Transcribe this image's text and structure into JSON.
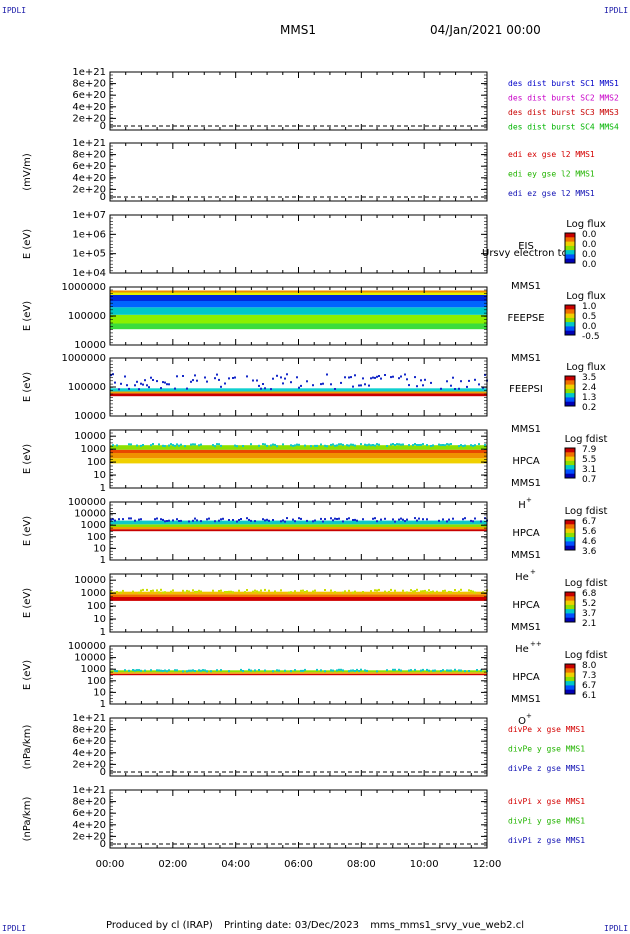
{
  "header": {
    "corner_label": "IPDLI",
    "spacecraft": "MMS1",
    "date_time": "04/Jan/2021 00:00"
  },
  "footer": {
    "produced_by": "Produced by cl (IRAP)",
    "printing_date": "Printing date: 03/Dec/2023",
    "file_name": "mms_mms1_srvy_vue_web2.cl"
  },
  "time_axis": {
    "ticks": [
      "00:00",
      "02:00",
      "04:00",
      "06:00",
      "08:00",
      "10:00",
      "12:00"
    ]
  },
  "colors": {
    "mms1": "#0000c8",
    "mms2": "#c800c8",
    "mms3": "#c80000",
    "mms4": "#00b400",
    "x": "#d40000",
    "y": "#22b400",
    "z": "#1010b4",
    "gse": "#009600"
  },
  "chart_data": [
    {
      "type": "line",
      "name": "des_dist_burst",
      "ylabel": "",
      "yticks": [
        "1e+21",
        "8e+20",
        "6e+20",
        "4e+20",
        "2e+20",
        "0"
      ],
      "yticks_values": [
        1e+21,
        8e+20,
        6e+20,
        4e+20,
        2e+20,
        0
      ],
      "ylim": [
        0,
        1e+21
      ],
      "series": [
        {
          "name": "des dist burst SC1 MMS1",
          "color": "#0000c8",
          "values": []
        },
        {
          "name": "des dist burst SC2 MMS2",
          "color": "#c800c8",
          "values": []
        },
        {
          "name": "des dist burst SC3 MMS3",
          "color": "#c80000",
          "values": []
        },
        {
          "name": "des dist burst SC4 MMS4",
          "color": "#00b400",
          "values": []
        }
      ],
      "zero_line": true
    },
    {
      "type": "line",
      "name": "edi_e",
      "ylabel": "(mV/m)",
      "yticks": [
        "1e+21",
        "8e+20",
        "6e+20",
        "4e+20",
        "2e+20",
        "0"
      ],
      "ylim": [
        0,
        1e+21
      ],
      "series": [
        {
          "name": "edi ex gse l2 MMS1",
          "color": "#d40000",
          "values": []
        },
        {
          "name": "edi ey gse l2 MMS1",
          "color": "#22b400",
          "values": []
        },
        {
          "name": "edi ez gse l2 MMS1",
          "color": "#1010b4",
          "values": []
        }
      ],
      "zero_line": true
    },
    {
      "type": "heatmap",
      "name": "eis",
      "ylabel": "E (eV)",
      "yscale": "log",
      "yticks": [
        "1e+07",
        "1e+06",
        "1e+05",
        "1e+04"
      ],
      "ylim": [
        10000,
        10000000
      ],
      "instrument": [
        "EIS",
        "MMS1"
      ],
      "overlay_text": "Ursvy electron to",
      "colorbar": {
        "title": "Log flux",
        "ticks": [
          "0.0",
          "0.0",
          "0.0",
          "0.0"
        ]
      },
      "bands": []
    },
    {
      "type": "heatmap",
      "name": "feeps_e",
      "ylabel": "E (eV)",
      "yscale": "log",
      "yticks": [
        "1000000",
        "100000",
        "10000"
      ],
      "ylim": [
        10000,
        1000000
      ],
      "instrument": [
        "FEEPSE",
        "MMS1"
      ],
      "colorbar": {
        "title": "Log flux",
        "ticks": [
          "1.0",
          "0.5",
          "0.0",
          "-0.5"
        ]
      },
      "bands": [
        {
          "from": 35000,
          "to": 55000,
          "color": "#3cdc3c"
        },
        {
          "from": 55000,
          "to": 110000,
          "color": "#8cf000"
        },
        {
          "from": 110000,
          "to": 200000,
          "color": "#00c8c8"
        },
        {
          "from": 200000,
          "to": 330000,
          "color": "#0064ff"
        },
        {
          "from": 330000,
          "to": 530000,
          "color": "#0028dc"
        },
        {
          "from": 530000,
          "to": 650000,
          "color": "#e6f000"
        },
        {
          "from": 650000,
          "to": 760000,
          "color": "#f08c00"
        }
      ]
    },
    {
      "type": "heatmap",
      "name": "feeps_i",
      "ylabel": "E (eV)",
      "yscale": "log",
      "yticks": [
        "1000000",
        "100000",
        "10000"
      ],
      "ylim": [
        10000,
        1000000
      ],
      "instrument": [
        "FEEPSI",
        "MMS1"
      ],
      "colorbar": {
        "title": "Log flux",
        "ticks": [
          "3.5",
          "2.4",
          "1.3",
          "0.2"
        ]
      },
      "bands": [
        {
          "from": 48000,
          "to": 60000,
          "color": "#c80000"
        },
        {
          "from": 60000,
          "to": 70000,
          "color": "#f0a000"
        },
        {
          "from": 70000,
          "to": 90000,
          "color": "#10d0d0"
        },
        {
          "from": 90000,
          "to": 300000,
          "color": "#1428c8",
          "sparse": true
        }
      ]
    },
    {
      "type": "heatmap",
      "name": "hpca_h",
      "ylabel": "E (eV)",
      "yscale": "log",
      "yticks": [
        "10000",
        "1000",
        "100",
        "10",
        "1"
      ],
      "ylim": [
        1,
        30000
      ],
      "instrument": [
        "HPCA",
        "MMS1"
      ],
      "species": "H",
      "species_sup": "+",
      "colorbar": {
        "title": "Log fdist",
        "ticks": [
          "7.9",
          "5.5",
          "3.1",
          "0.7"
        ]
      },
      "bands": [
        {
          "from": 80,
          "to": 200,
          "color": "#f0d000"
        },
        {
          "from": 200,
          "to": 500,
          "color": "#f09000"
        },
        {
          "from": 500,
          "to": 900,
          "color": "#e84800"
        },
        {
          "from": 900,
          "to": 2000,
          "color": "#8ce000"
        },
        {
          "from": 2000,
          "to": 3000,
          "color": "#10c8c8",
          "sparse": true
        }
      ]
    },
    {
      "type": "heatmap",
      "name": "hpca_he",
      "ylabel": "E (eV)",
      "yscale": "log",
      "yticks": [
        "100000",
        "10000",
        "1000",
        "100",
        "10",
        "1"
      ],
      "ylim": [
        1,
        100000
      ],
      "instrument": [
        "HPCA",
        "MMS1"
      ],
      "species": "He",
      "species_sup": "+",
      "colorbar": {
        "title": "Log fdist",
        "ticks": [
          "6.7",
          "5.6",
          "4.6",
          "3.6"
        ]
      },
      "bands": [
        {
          "from": 300,
          "to": 450,
          "color": "#c80000"
        },
        {
          "from": 450,
          "to": 700,
          "color": "#f0a000"
        },
        {
          "from": 700,
          "to": 1200,
          "color": "#8ce000"
        },
        {
          "from": 1200,
          "to": 2500,
          "color": "#10c8c8"
        },
        {
          "from": 2500,
          "to": 5000,
          "color": "#1428c8",
          "sparse": true
        }
      ]
    },
    {
      "type": "heatmap",
      "name": "hpca_he2",
      "ylabel": "E (eV)",
      "yscale": "log",
      "yticks": [
        "10000",
        "1000",
        "100",
        "10",
        "1"
      ],
      "ylim": [
        1,
        30000
      ],
      "instrument": [
        "HPCA",
        "MMS1"
      ],
      "species": "He",
      "species_sup": "++",
      "colorbar": {
        "title": "Log fdist",
        "ticks": [
          "6.8",
          "5.2",
          "3.7",
          "2.1"
        ]
      },
      "bands": [
        {
          "from": 250,
          "to": 500,
          "color": "#d00000"
        },
        {
          "from": 500,
          "to": 800,
          "color": "#f07000"
        },
        {
          "from": 800,
          "to": 1300,
          "color": "#f0c000"
        },
        {
          "from": 1300,
          "to": 2200,
          "color": "#c8e000",
          "sparse": true
        }
      ]
    },
    {
      "type": "heatmap",
      "name": "hpca_o",
      "ylabel": "E (eV)",
      "yscale": "log",
      "yticks": [
        "100000",
        "10000",
        "1000",
        "100",
        "10",
        "1"
      ],
      "ylim": [
        1,
        100000
      ],
      "instrument": [
        "HPCA",
        "MMS1"
      ],
      "species": "O",
      "species_sup": "+",
      "colorbar": {
        "title": "Log fdist",
        "ticks": [
          "8.0",
          "7.3",
          "6.7",
          "6.1"
        ]
      },
      "bands": [
        {
          "from": 300,
          "to": 400,
          "color": "#d00000"
        },
        {
          "from": 400,
          "to": 550,
          "color": "#f0a000"
        },
        {
          "from": 550,
          "to": 800,
          "color": "#8ce000"
        },
        {
          "from": 800,
          "to": 1100,
          "color": "#10c8c8",
          "sparse": true
        }
      ]
    },
    {
      "type": "line",
      "name": "divpe",
      "ylabel": "(nPa/km)",
      "yticks": [
        "1e+21",
        "8e+20",
        "6e+20",
        "4e+20",
        "2e+20",
        "0"
      ],
      "ylim": [
        0,
        1e+21
      ],
      "series": [
        {
          "name": "divPe x gse MMS1",
          "color": "#d40000",
          "values": []
        },
        {
          "name": "divPe y gse MMS1",
          "color": "#22b400",
          "values": []
        },
        {
          "name": "divPe z gse MMS1",
          "color": "#1010b4",
          "values": []
        }
      ],
      "zero_line": true
    },
    {
      "type": "line",
      "name": "divpi",
      "ylabel": "(nPa/km)",
      "yticks": [
        "1e+21",
        "8e+20",
        "6e+20",
        "4e+20",
        "2e+20",
        "0"
      ],
      "ylim": [
        0,
        1e+21
      ],
      "series": [
        {
          "name": "divPi x gse MMS1",
          "color": "#d40000",
          "values": []
        },
        {
          "name": "divPi y gse MMS1",
          "color": "#22b400",
          "values": []
        },
        {
          "name": "divPi z gse MMS1",
          "color": "#1010b4",
          "values": []
        }
      ],
      "zero_line": true
    }
  ]
}
